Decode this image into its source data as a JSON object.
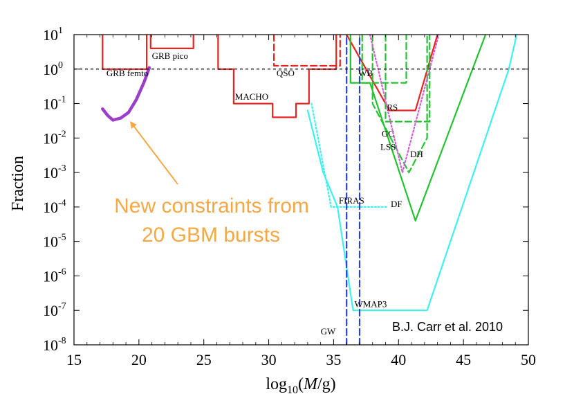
{
  "chart_data": {
    "type": "line",
    "xlabel": "log10(M/g)",
    "xlabel_parts": {
      "pre": "log",
      "sub": "10",
      "open": "(",
      "var": "M",
      "post": "/g)"
    },
    "ylabel": "Fraction",
    "xlim": [
      15,
      50
    ],
    "ylim_log10": [
      -8,
      1
    ],
    "y_scale": "log",
    "x_ticks": [
      15,
      20,
      25,
      30,
      35,
      40,
      45,
      50
    ],
    "x_tick_labels": [
      "15",
      "20",
      "25",
      "30",
      "35",
      "40",
      "45",
      "50"
    ],
    "y_ticks_exp": [
      1,
      0,
      -1,
      -2,
      -3,
      -4,
      -5,
      -6,
      -7,
      -8
    ],
    "y_tick_labels": [
      "101",
      "100",
      "10-1",
      "10-2",
      "10-3",
      "10-4",
      "10-5",
      "10-6",
      "10-7",
      "10-8"
    ],
    "y_tick_base": "10",
    "y_tick_exps": [
      "1",
      "0",
      "-1",
      "-2",
      "-3",
      "-4",
      "-5",
      "-6",
      "-7",
      "-8"
    ],
    "unity_line": {
      "y": 1,
      "style": "dashed",
      "color": "#000000"
    },
    "series": [
      {
        "label": "GRB femto",
        "color": "#e8231f",
        "style": "solid",
        "points": [
          [
            17.2,
            10
          ],
          [
            17.2,
            1
          ],
          [
            20.6,
            1
          ],
          [
            20.6,
            10
          ]
        ]
      },
      {
        "label": "GRB pico",
        "color": "#e8231f",
        "style": "solid",
        "points": [
          [
            20.9,
            10
          ],
          [
            20.9,
            3.98
          ],
          [
            24.2,
            3.98
          ],
          [
            24.2,
            10
          ]
        ]
      },
      {
        "label": "MACHO",
        "color": "#e8231f",
        "style": "solid",
        "points": [
          [
            26.1,
            10
          ],
          [
            26.1,
            1
          ],
          [
            27.3,
            1
          ],
          [
            27.3,
            0.1
          ],
          [
            30.3,
            0.1
          ],
          [
            30.3,
            0.04
          ],
          [
            32.1,
            0.04
          ],
          [
            32.1,
            0.1
          ],
          [
            33.1,
            0.1
          ],
          [
            33.1,
            1
          ],
          [
            35.2,
            1
          ],
          [
            35.2,
            10
          ]
        ]
      },
      {
        "label": "QSO",
        "color": "#e8231f",
        "style": "dashed",
        "points": [
          [
            30.4,
            10
          ],
          [
            30.4,
            1.25
          ],
          [
            35.5,
            1.25
          ],
          [
            35.5,
            10
          ]
        ]
      },
      {
        "label": "WB",
        "color": "#e8231f",
        "style": "solid",
        "points": [
          [
            36.0,
            10
          ],
          [
            39.3,
            0.063
          ],
          [
            41.3,
            0.063
          ],
          [
            43.0,
            10
          ]
        ]
      },
      {
        "label": "RS",
        "color": "#22c32f",
        "style": "solid",
        "points": [
          [
            36.3,
            10
          ],
          [
            36.3,
            0.4
          ],
          [
            37.8,
            0.4
          ],
          [
            41.3,
            4e-05
          ],
          [
            46.7,
            10
          ]
        ]
      },
      {
        "label": "GC",
        "color": "#22c32f",
        "style": "dashed",
        "points": [
          [
            37.2,
            10
          ],
          [
            37.2,
            1
          ],
          [
            37.2,
            0.4
          ],
          [
            40.6,
            0.4
          ],
          [
            40.6,
            10
          ]
        ]
      },
      {
        "label": "DH",
        "color": "#22c32f",
        "style": "dashed",
        "points": [
          [
            38.0,
            10
          ],
          [
            38.0,
            0.1
          ],
          [
            40.8,
            0.001
          ],
          [
            42.2,
            0.01
          ],
          [
            42.2,
            10
          ]
        ]
      },
      {
        "label": "LSS",
        "color": "#22c32f",
        "style": "dashed",
        "points": [
          [
            39.0,
            10
          ],
          [
            39.0,
            0.03
          ],
          [
            42.4,
            0.03
          ],
          [
            42.4,
            10
          ]
        ]
      },
      {
        "label": "LSS-pink",
        "color": "#d75cd7",
        "style": "dotted",
        "points": [
          [
            37.8,
            10
          ],
          [
            40.3,
            0.001
          ],
          [
            43.1,
            10
          ]
        ]
      },
      {
        "label": "WMAP3",
        "color": "#3ff0f0",
        "style": "solid",
        "points": [
          [
            33.0,
            0.063
          ],
          [
            34.2,
            0.001
          ],
          [
            35.3,
            0.0001
          ],
          [
            36.5,
            1e-07
          ],
          [
            42.2,
            1e-07
          ],
          [
            48.5,
            1
          ],
          [
            49.1,
            10
          ]
        ]
      },
      {
        "label": "FIRAS",
        "color": "#3ff0f0",
        "style": "dotted",
        "points": [
          [
            33.3,
            0.1
          ],
          [
            34.8,
            0.0001
          ],
          [
            39.1,
            0.0001
          ]
        ]
      },
      {
        "label": "GW-1",
        "color": "#2b3fd8",
        "style": "dashed",
        "points": [
          [
            36.0,
            1e-08
          ],
          [
            36.0,
            10
          ]
        ]
      },
      {
        "label": "GW-2",
        "color": "#2b3fd8",
        "style": "dashed",
        "points": [
          [
            37.0,
            1e-08
          ],
          [
            37.0,
            10
          ]
        ]
      },
      {
        "label": "New constraints",
        "color": "#9b3fc9",
        "style": "solid",
        "points": [
          [
            17.2,
            0.07
          ],
          [
            17.6,
            0.045
          ],
          [
            18.0,
            0.033
          ],
          [
            18.6,
            0.038
          ],
          [
            19.2,
            0.055
          ],
          [
            19.8,
            0.13
          ],
          [
            20.4,
            0.42
          ],
          [
            20.8,
            1.1
          ]
        ]
      }
    ],
    "annotations": [
      {
        "text": "GRB femto",
        "x": 17.5,
        "y": 0.63
      },
      {
        "text": "GRB pico",
        "x": 21.0,
        "y": 2.0
      },
      {
        "text": "MACHO",
        "x": 27.4,
        "y": 0.13
      },
      {
        "text": "QSO",
        "x": 30.6,
        "y": 0.63
      },
      {
        "text": "WB",
        "x": 36.9,
        "y": 0.63
      },
      {
        "text": "RS",
        "x": 39.1,
        "y": 0.063
      },
      {
        "text": "GC",
        "x": 38.7,
        "y": 0.011
      },
      {
        "text": "LSS",
        "x": 38.6,
        "y": 0.0045
      },
      {
        "text": "DH",
        "x": 40.9,
        "y": 0.0028
      },
      {
        "text": "FIRAS",
        "x": 35.4,
        "y": 0.000125
      },
      {
        "text": "DF",
        "x": 39.4,
        "y": 0.0001
      },
      {
        "text": "WMAP3",
        "x": 36.6,
        "y": 1.25e-07
      },
      {
        "text": "GW",
        "x": 34.0,
        "y": 2e-08
      }
    ]
  },
  "callout": {
    "line1": "New constraints from",
    "line2": "20 GBM bursts",
    "arrow_color": "#f5a843",
    "text_color": "#f5a843"
  },
  "credit": "B.J. Carr et al. 2010"
}
